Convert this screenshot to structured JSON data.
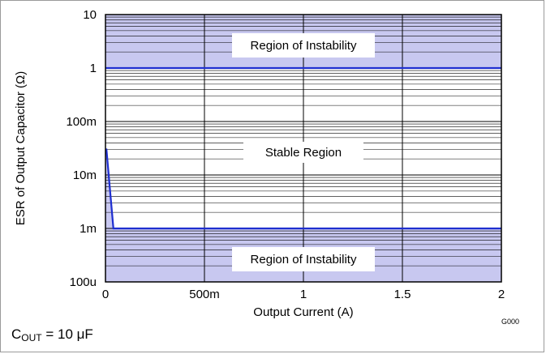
{
  "chart_data": {
    "type": "area",
    "xlabel": "Output Current (A)",
    "ylabel": "ESR of Output Capacitor (Ω)",
    "x_ticks": [
      "0",
      "500m",
      "1",
      "1.5",
      "2"
    ],
    "y_ticks": [
      "100u",
      "1m",
      "10m",
      "100m",
      "1",
      "10"
    ],
    "y_scale": "log",
    "xlim": [
      0,
      2
    ],
    "ylim": [
      0.0001,
      10
    ],
    "grid": true,
    "regions": [
      {
        "label": "Region of Instability",
        "y_from": 1,
        "y_to": 10
      },
      {
        "label": "Stable Region"
      },
      {
        "label": "Region of Instability",
        "y_from": 0.0001
      }
    ],
    "series": [
      {
        "name": "upper boundary",
        "color": "#1f2fd0",
        "x": [
          0,
          2
        ],
        "y": [
          1,
          1
        ]
      },
      {
        "name": "lower boundary",
        "color": "#1f2fd0",
        "x": [
          0,
          0.005,
          0.04,
          0.05,
          2
        ],
        "y": [
          0.03,
          0.03,
          0.001,
          0.001,
          0.001
        ]
      }
    ],
    "fill_color": "#c8c8f0",
    "code": "G000"
  },
  "footnote": {
    "prefix": "C",
    "subscript": "OUT",
    "suffix": " = 10 μF"
  }
}
